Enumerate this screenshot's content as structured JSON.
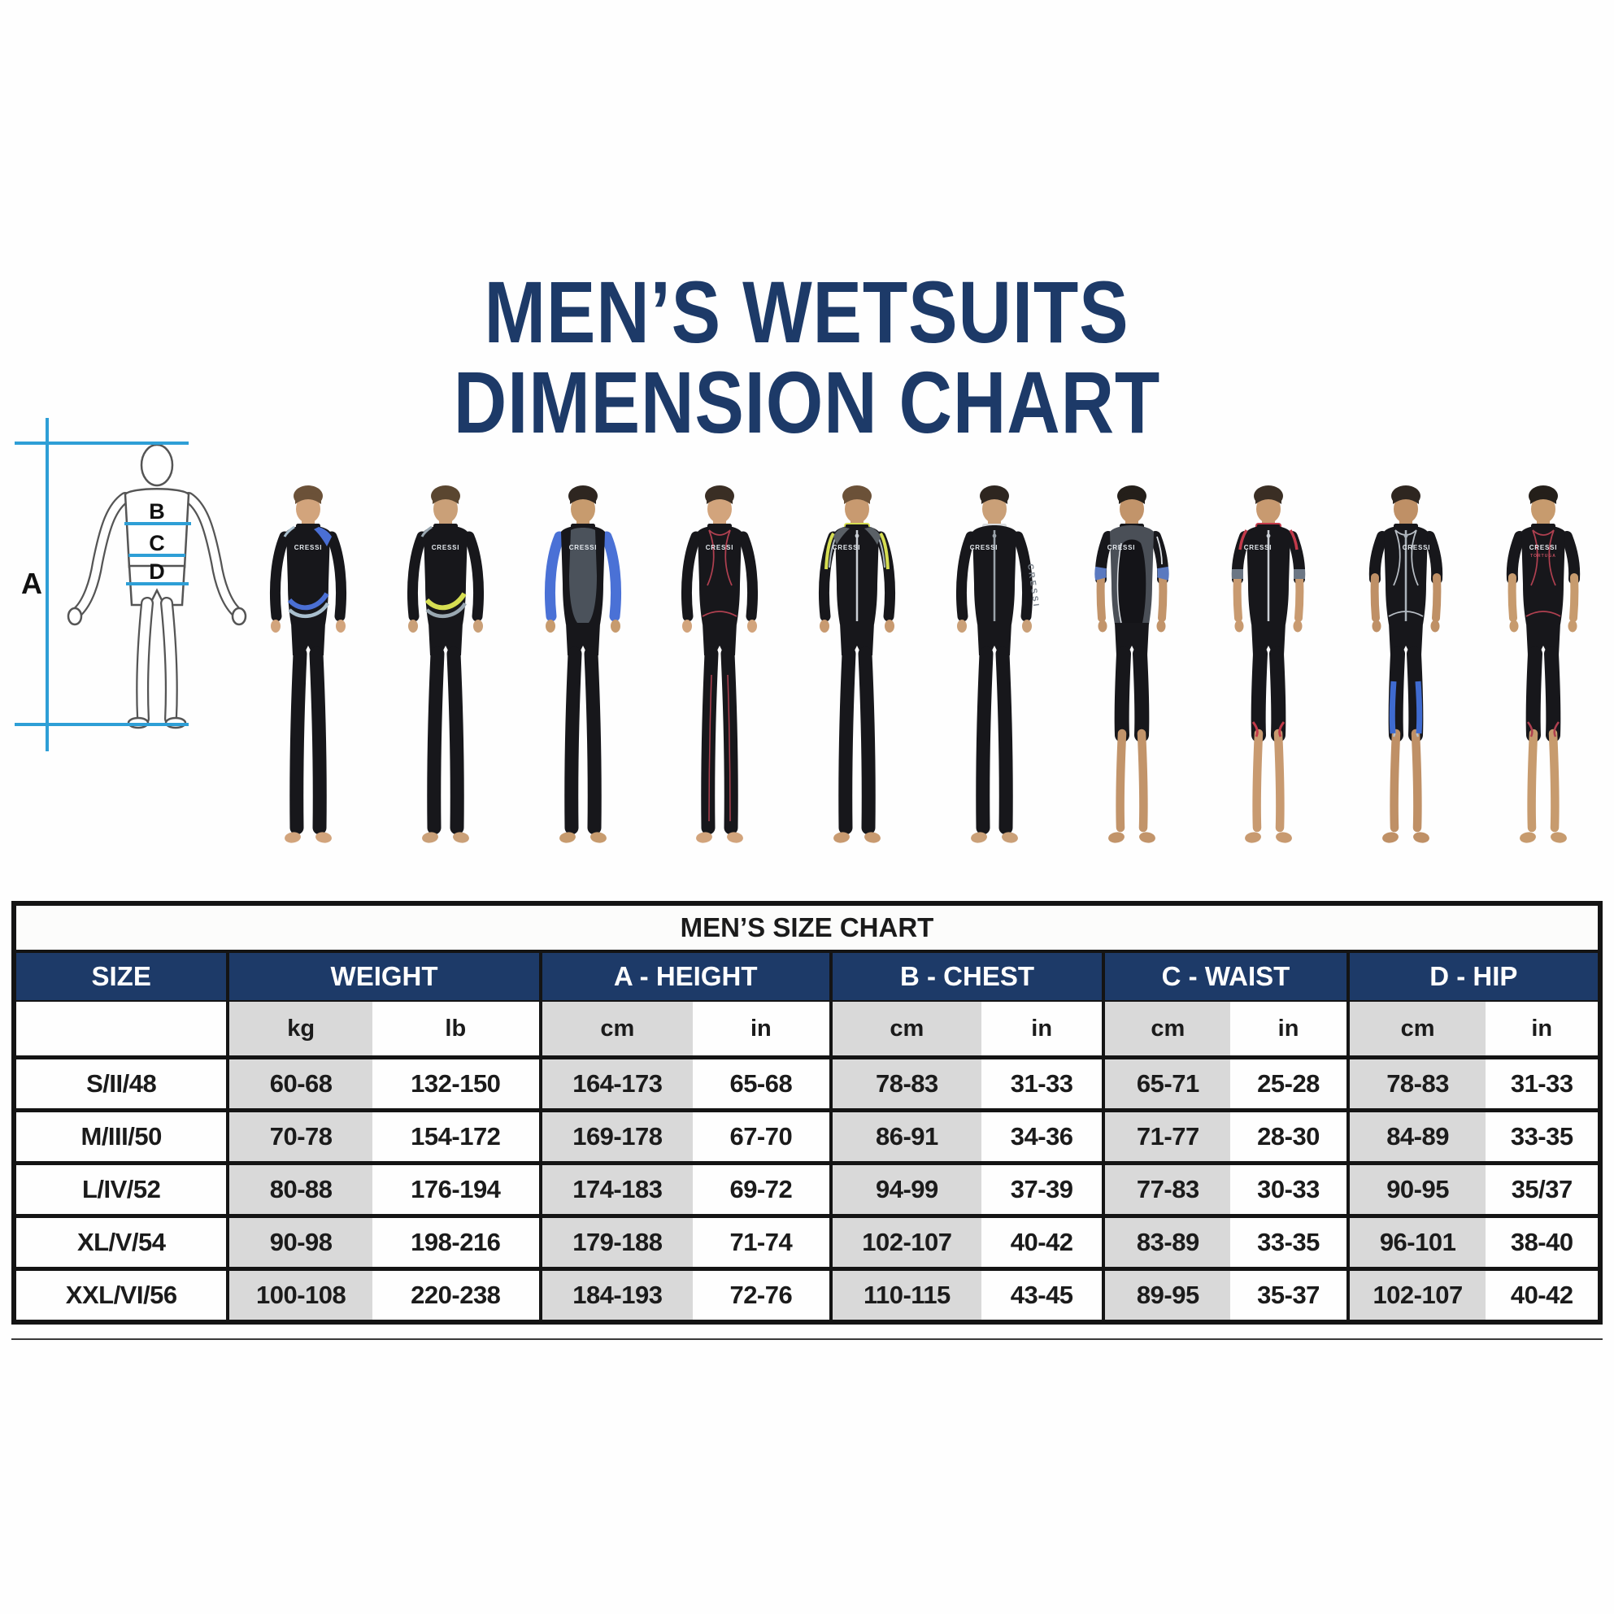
{
  "title": {
    "line1": "MEN’S WETSUITS",
    "line2": "DIMENSION CHART"
  },
  "colors": {
    "navy": "#1d3a68",
    "table_border": "#141414",
    "gray_cell": "#d9d9d9",
    "diagram_line_blue": "#2e9fd6",
    "diagram_outline_gray": "#555555",
    "suit_black": "#17171b"
  },
  "diagram": {
    "name": "body measurement diagram",
    "labels": {
      "height": "A",
      "chest": "B",
      "waist": "C",
      "hip": "D"
    }
  },
  "models": [
    {
      "label": "full wetsuit with blue and silver waist accents",
      "type": "full",
      "variant": "swoosh",
      "zip": false,
      "logo": "CRESSI",
      "logo_pos": "center",
      "skin": "#d2a47c",
      "hair": "#6b5138",
      "colors": {
        "accent": "#4a6fd4",
        "accent2": "#a9bfce",
        "patch": "#4a6fd4"
      }
    },
    {
      "label": "full wetsuit with yellow and silver waist accents",
      "type": "full",
      "variant": "swoosh",
      "zip": false,
      "logo": "CRESSI",
      "logo_pos": "center",
      "skin": "#caa078",
      "hair": "#5a4630",
      "colors": {
        "accent": "#d6de52",
        "accent2": "#9aa8b2"
      }
    },
    {
      "label": "full wetsuit with blue arms and charcoal chest panel",
      "type": "full",
      "variant": "panel",
      "zip": false,
      "logo": "CRESSI",
      "logo_pos": "center",
      "skin": "#c79b6e",
      "hair": "#2e2620",
      "colors": {
        "arms": "#4a71d6",
        "panel": "#4b525b"
      }
    },
    {
      "label": "full wetsuit with red stitching",
      "type": "full",
      "variant": "stitch",
      "zip": false,
      "logo": "CRESSI",
      "logo_pos": "center",
      "skin": "#d2a47c",
      "hair": "#3a2e24",
      "colors": {
        "stitch": "#b04050"
      }
    },
    {
      "label": "full front-zip wetsuit with yellow arm stripes",
      "type": "full",
      "variant": "shoulder",
      "zip": true,
      "logo": "CRESSI",
      "logo_pos": "left",
      "skin": "#c89a70",
      "hair": "#6b5138",
      "colors": {
        "accent": "#d6de52",
        "accent2": "#aab4bd",
        "zip": "#c9ced4"
      }
    },
    {
      "label": "full front-zip skin suit with white collar",
      "type": "full",
      "variant": "plain6",
      "zip": true,
      "logo": "CRESSI",
      "logo_pos": "left",
      "skin": "#caa078",
      "hair": "#2e2620",
      "colors": {
        "collar": "#d8dbde",
        "zip": "#9aa2aa",
        "side_text": "#7b838c"
      },
      "side_text": "CRESSI"
    },
    {
      "label": "shorty with charcoal torso and blue sleeve ends",
      "type": "shorty",
      "variant": "panel7",
      "zip": false,
      "logo": "CRESSI",
      "logo_pos": "left",
      "skin": "#c2946a",
      "hair": "#241f1a",
      "colors": {
        "torso": "#4a4f57",
        "panel": "#141418",
        "cuff": "#5a79c0",
        "trim": "#dfe3e8"
      }
    },
    {
      "label": "shorty front-zip with red trim and gray cuffs",
      "type": "shorty",
      "variant": "trim8",
      "zip": true,
      "logo": "CRESSI",
      "logo_pos": "left",
      "skin": "#c89a70",
      "hair": "#3a2e24",
      "colors": {
        "accent": "#c23a4a",
        "cuff": "#6b7684",
        "zip": "#c9ced4"
      }
    },
    {
      "label": "shorty front-zip with blue leg side panels",
      "type": "shorty",
      "variant": "stitch9",
      "zip": true,
      "logo": "CRESSI",
      "logo_pos": "right",
      "skin": "#bf9066",
      "hair": "#2e2620",
      "colors": {
        "stitch": "#b9bfc6",
        "panel": "#3f6bd0",
        "zip": "#aab2ba"
      }
    },
    {
      "label": "shorty with red stitching",
      "type": "shorty",
      "variant": "stitch",
      "zip": false,
      "logo": "CRESSI",
      "sublabel": "TORTUGA",
      "logo_pos": "center",
      "skin": "#c79b6e",
      "hair": "#241f1a",
      "colors": {
        "stitch": "#b04050",
        "sub": "#c05060"
      }
    }
  ],
  "table": {
    "title": "MEN’S SIZE CHART",
    "groups": [
      "SIZE",
      "WEIGHT",
      "A - HEIGHT",
      "B - CHEST",
      "C - WAIST",
      "D - HIP"
    ],
    "units": [
      "kg",
      "lb",
      "cm",
      "in",
      "cm",
      "in",
      "cm",
      "in",
      "cm",
      "in"
    ],
    "rows": [
      [
        "S/II/48",
        "60-68",
        "132-150",
        "164-173",
        "65-68",
        "78-83",
        "31-33",
        "65-71",
        "25-28",
        "78-83",
        "31-33"
      ],
      [
        "M/III/50",
        "70-78",
        "154-172",
        "169-178",
        "67-70",
        "86-91",
        "34-36",
        "71-77",
        "28-30",
        "84-89",
        "33-35"
      ],
      [
        "L/IV/52",
        "80-88",
        "176-194",
        "174-183",
        "69-72",
        "94-99",
        "37-39",
        "77-83",
        "30-33",
        "90-95",
        "35/37"
      ],
      [
        "XL/V/54",
        "90-98",
        "198-216",
        "179-188",
        "71-74",
        "102-107",
        "40-42",
        "83-89",
        "33-35",
        "96-101",
        "38-40"
      ],
      [
        "XXL/VI/56",
        "100-108",
        "220-238",
        "184-193",
        "72-76",
        "110-115",
        "43-45",
        "89-95",
        "35-37",
        "102-107",
        "40-42"
      ]
    ]
  },
  "chart_data": {
    "type": "table",
    "title": "MEN’S SIZE CHART",
    "columns": [
      "SIZE",
      "WEIGHT kg",
      "WEIGHT lb",
      "A - HEIGHT cm",
      "A - HEIGHT in",
      "B - CHEST cm",
      "B - CHEST in",
      "C - WAIST cm",
      "C - WAIST in",
      "D - HIP cm",
      "D - HIP in"
    ],
    "rows": [
      [
        "S/II/48",
        "60-68",
        "132-150",
        "164-173",
        "65-68",
        "78-83",
        "31-33",
        "65-71",
        "25-28",
        "78-83",
        "31-33"
      ],
      [
        "M/III/50",
        "70-78",
        "154-172",
        "169-178",
        "67-70",
        "86-91",
        "34-36",
        "71-77",
        "28-30",
        "84-89",
        "33-35"
      ],
      [
        "L/IV/52",
        "80-88",
        "176-194",
        "174-183",
        "69-72",
        "94-99",
        "37-39",
        "77-83",
        "30-33",
        "90-95",
        "35/37"
      ],
      [
        "XL/V/54",
        "90-98",
        "198-216",
        "179-188",
        "71-74",
        "102-107",
        "40-42",
        "83-89",
        "33-35",
        "96-101",
        "38-40"
      ],
      [
        "XXL/VI/56",
        "100-108",
        "220-238",
        "184-193",
        "72-76",
        "110-115",
        "43-45",
        "89-95",
        "35-37",
        "102-107",
        "40-42"
      ]
    ]
  }
}
